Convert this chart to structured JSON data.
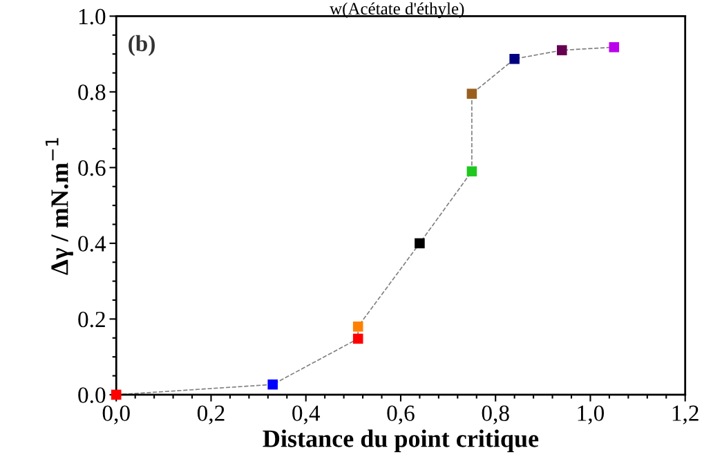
{
  "chart_data": {
    "type": "line",
    "xlabel": "Distance du point critique",
    "ylabel": "Δγ / mN.m$^{−1}$",
    "annotations": [
      "(b)",
      "w(Acétate d'éthyle)"
    ],
    "x": [
      0,
      0.33,
      0.51,
      0.51,
      0.64,
      0.75,
      0.75,
      0.84,
      0.94,
      1.05
    ],
    "series": [
      {
        "color": "#808080",
        "values": [
          0,
          0.027,
          0.148,
          0.18,
          0.4,
          0.59,
          0.795,
          0.887,
          0.91,
          0.918
        ],
        "colors": [
          "#ff0000",
          "#0000ff",
          "#ff0000",
          "#ff8000",
          "#000000",
          "#1ec81e",
          "#9a5f1e",
          "#000080",
          "#660050",
          "#bb00ee"
        ]
      }
    ],
    "xlim": [
      0,
      1.2
    ],
    "xticks": [
      {
        "value": 0,
        "label": "0,0"
      },
      {
        "value": 0.2,
        "label": "0,2"
      },
      {
        "value": 0.4,
        "label": "0,4"
      },
      {
        "value": 0.6,
        "label": "0,6"
      },
      {
        "value": 0.8,
        "label": "0,8"
      },
      {
        "value": 1.0,
        "label": "1,0"
      },
      {
        "value": 1.2,
        "label": "1,2"
      }
    ],
    "ylim": [
      0,
      1.0
    ],
    "yticks": [
      {
        "value": 0,
        "label": "0.0"
      },
      {
        "value": 0.2,
        "label": "0.2"
      },
      {
        "value": 0.4,
        "label": "0.4"
      },
      {
        "value": 0.6,
        "label": "0.6"
      },
      {
        "value": 0.8,
        "label": "0.8"
      },
      {
        "value": 1.0,
        "label": "1.0"
      }
    ],
    "marker": "square",
    "line_style": "dashed",
    "grid": false,
    "legend": false
  }
}
